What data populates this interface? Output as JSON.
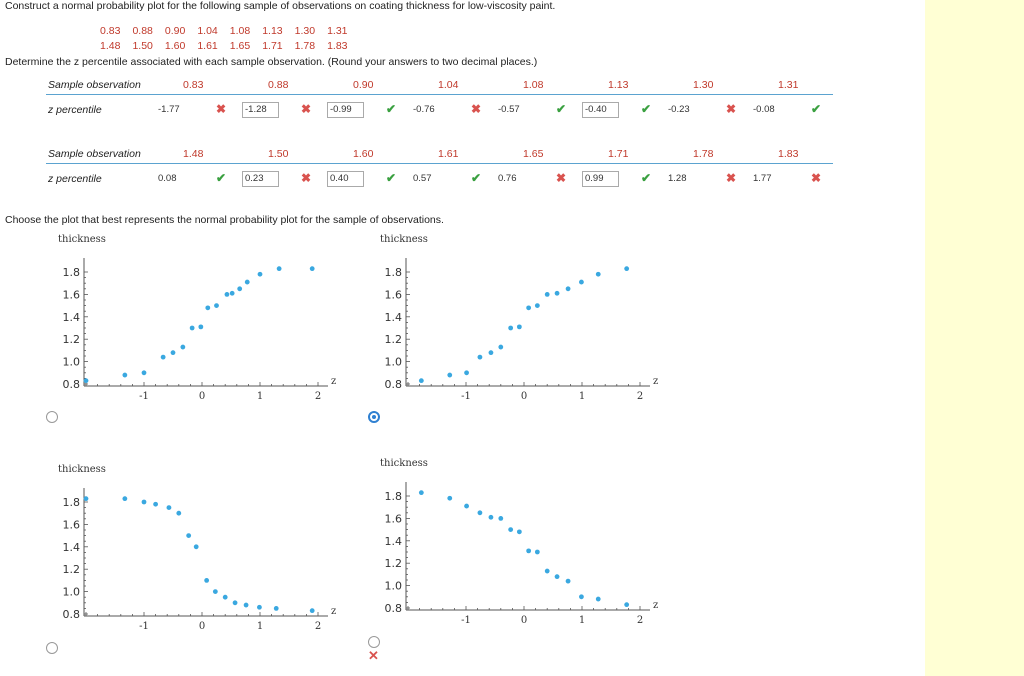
{
  "question": {
    "intro": "Construct a normal probability plot for the following sample of observations on coating thickness for low-viscosity paint.",
    "data_row1": [
      "0.83",
      "0.88",
      "0.90",
      "1.04",
      "1.08",
      "1.13",
      "1.30",
      "1.31"
    ],
    "data_row2": [
      "1.48",
      "1.50",
      "1.60",
      "1.61",
      "1.65",
      "1.71",
      "1.78",
      "1.83"
    ],
    "determine": "Determine the z percentile associated with each sample observation. (Round your answers to two decimal places.)",
    "choose": "Choose the plot that best represents the normal probability plot for the sample of observations."
  },
  "table1": {
    "obs_label": "Sample observation",
    "z_label": "z percentile",
    "obs": [
      "0.83",
      "0.88",
      "0.90",
      "1.04",
      "1.08",
      "1.13",
      "1.30",
      "1.31"
    ],
    "z": [
      {
        "v": "-1.77",
        "box": false,
        "mark": "bad"
      },
      {
        "v": "-1.28",
        "box": true,
        "mark": "bad"
      },
      {
        "v": "-0.99",
        "box": true,
        "mark": "ok"
      },
      {
        "v": "-0.76",
        "box": false,
        "mark": "bad"
      },
      {
        "v": "-0.57",
        "box": false,
        "mark": "ok"
      },
      {
        "v": "-0.40",
        "box": true,
        "mark": "ok"
      },
      {
        "v": "-0.23",
        "box": false,
        "mark": "bad"
      },
      {
        "v": "-0.08",
        "box": false,
        "mark": "ok"
      }
    ]
  },
  "table2": {
    "obs_label": "Sample observation",
    "z_label": "z percentile",
    "obs": [
      "1.48",
      "1.50",
      "1.60",
      "1.61",
      "1.65",
      "1.71",
      "1.78",
      "1.83"
    ],
    "z": [
      {
        "v": "0.08",
        "box": false,
        "mark": "ok"
      },
      {
        "v": "0.23",
        "box": true,
        "mark": "bad"
      },
      {
        "v": "0.40",
        "box": true,
        "mark": "ok"
      },
      {
        "v": "0.57",
        "box": false,
        "mark": "ok"
      },
      {
        "v": "0.76",
        "box": false,
        "mark": "bad"
      },
      {
        "v": "0.99",
        "box": true,
        "mark": "ok"
      },
      {
        "v": "1.28",
        "box": false,
        "mark": "bad"
      },
      {
        "v": "1.77",
        "box": false,
        "mark": "bad"
      }
    ]
  },
  "chart_data": [
    {
      "type": "scatter",
      "ylabel": "thickness",
      "xlabel": "z",
      "xlim": [
        -2,
        2
      ],
      "ylim": [
        0.8,
        1.8
      ],
      "xticks": [
        "-1",
        "0",
        "1",
        "2"
      ],
      "yticks": [
        "0.8",
        "1.0",
        "1.2",
        "1.4",
        "1.6",
        "1.8"
      ],
      "x": [
        -2.0,
        -1.33,
        -1.0,
        -0.67,
        -0.5,
        -0.33,
        -0.17,
        -0.02,
        0.1,
        0.25,
        0.43,
        0.52,
        0.65,
        0.78,
        1.0,
        1.33,
        1.9
      ],
      "y": [
        0.83,
        0.88,
        0.9,
        1.04,
        1.08,
        1.13,
        1.3,
        1.31,
        1.48,
        1.5,
        1.6,
        1.61,
        1.65,
        1.71,
        1.78,
        1.83,
        1.83
      ],
      "selected": false
    },
    {
      "type": "scatter",
      "ylabel": "thickness",
      "xlabel": "z",
      "xlim": [
        -2,
        2
      ],
      "ylim": [
        0.8,
        1.8
      ],
      "xticks": [
        "-1",
        "0",
        "1",
        "2"
      ],
      "yticks": [
        "0.8",
        "1.0",
        "1.2",
        "1.4",
        "1.6",
        "1.8"
      ],
      "x": [
        -1.77,
        -1.28,
        -0.99,
        -0.76,
        -0.57,
        -0.4,
        -0.23,
        -0.08,
        0.08,
        0.23,
        0.4,
        0.57,
        0.76,
        0.99,
        1.28,
        1.77
      ],
      "y": [
        0.83,
        0.88,
        0.9,
        1.04,
        1.08,
        1.13,
        1.3,
        1.31,
        1.48,
        1.5,
        1.6,
        1.61,
        1.65,
        1.71,
        1.78,
        1.83
      ],
      "selected": true
    },
    {
      "type": "scatter",
      "ylabel": "thickness",
      "xlabel": "z",
      "xlim": [
        -2,
        2
      ],
      "ylim": [
        0.8,
        1.8
      ],
      "xticks": [
        "-1",
        "0",
        "1",
        "2"
      ],
      "yticks": [
        "0.8",
        "1.0",
        "1.2",
        "1.4",
        "1.6",
        "1.8"
      ],
      "x": [
        -2.0,
        -1.33,
        -1.0,
        -0.8,
        -0.57,
        -0.4,
        -0.23,
        -0.1,
        0.08,
        0.23,
        0.4,
        0.57,
        0.76,
        0.99,
        1.28,
        1.9
      ],
      "y": [
        1.83,
        1.83,
        1.8,
        1.78,
        1.75,
        1.7,
        1.5,
        1.4,
        1.1,
        1.0,
        0.95,
        0.9,
        0.88,
        0.86,
        0.85,
        0.83
      ],
      "selected": false
    },
    {
      "type": "scatter",
      "ylabel": "thickness",
      "xlabel": "z",
      "xlim": [
        -2,
        2
      ],
      "ylim": [
        0.8,
        1.8
      ],
      "xticks": [
        "-1",
        "0",
        "1",
        "2"
      ],
      "yticks": [
        "0.8",
        "1.0",
        "1.2",
        "1.4",
        "1.6",
        "1.8"
      ],
      "x": [
        -1.77,
        -1.28,
        -0.99,
        -0.76,
        -0.57,
        -0.4,
        -0.23,
        -0.08,
        0.08,
        0.23,
        0.4,
        0.57,
        0.76,
        0.99,
        1.28,
        1.77
      ],
      "y": [
        1.83,
        1.78,
        1.71,
        1.65,
        1.61,
        1.6,
        1.5,
        1.48,
        1.31,
        1.3,
        1.13,
        1.08,
        1.04,
        0.9,
        0.88,
        0.83
      ],
      "selected": false
    }
  ],
  "result_mark": "✕"
}
